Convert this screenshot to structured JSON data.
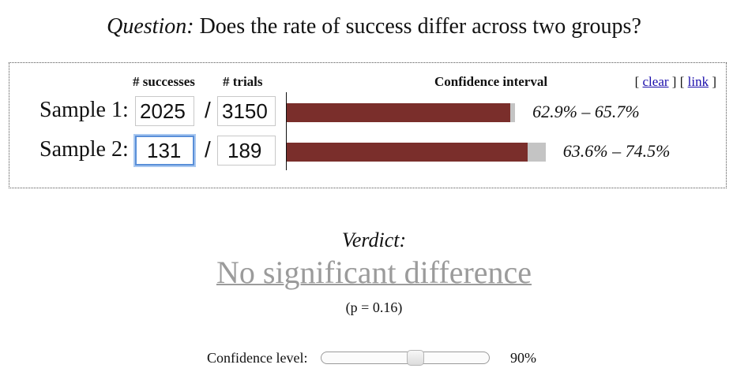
{
  "question": {
    "label": "Question:",
    "text": " Does the rate of success differ across two groups?"
  },
  "headers": {
    "successes": "# successes",
    "trials": "# trials",
    "ci": "Confidence interval"
  },
  "links": {
    "open1": "[ ",
    "clear": "clear",
    "mid": " ] [ ",
    "link": "link",
    "close": " ]"
  },
  "samples": [
    {
      "label": "Sample 1:",
      "successes": "2025",
      "trials": "3150",
      "slash": "/",
      "rate": 0.643,
      "ci_low": 0.629,
      "ci_high": 0.657,
      "ci_text": "62.9% – 65.7%"
    },
    {
      "label": "Sample 2:",
      "successes": "131",
      "trials": "189",
      "slash": "/",
      "rate": 0.693,
      "ci_low": 0.636,
      "ci_high": 0.745,
      "ci_text": "63.6% – 74.5%"
    }
  ],
  "verdict": {
    "label": "Verdict:",
    "text": "No significant difference",
    "pvalue": "(p = 0.16)"
  },
  "confidence": {
    "label": "Confidence level:",
    "value_text": "90%",
    "slider_fraction": 0.57
  },
  "colors": {
    "bar": "#7a2e2b",
    "ci": "#c4c4c4",
    "verdict": "#9b9b9b",
    "link": "#1a0dab"
  }
}
